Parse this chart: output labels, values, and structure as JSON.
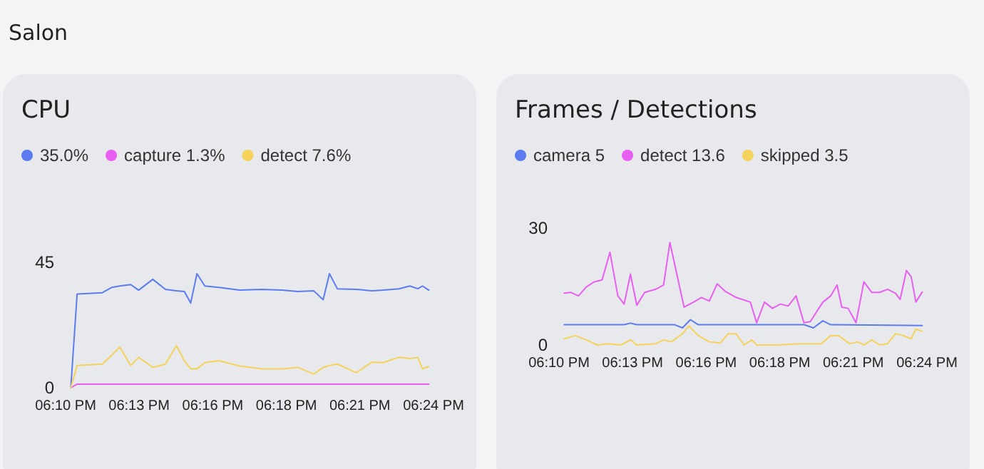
{
  "chart_data": [
    {
      "type": "line",
      "title": "CPU",
      "annotations": [
        "Salon"
      ],
      "legend": "top left",
      "grid": false,
      "marker": "none",
      "line_style": "solid",
      "x": [
        18.17,
        18.174,
        18.19,
        18.196,
        18.201,
        18.208,
        18.213,
        18.222,
        18.23,
        18.237,
        18.242,
        18.246,
        18.25,
        18.255,
        18.264,
        18.277,
        18.291,
        18.304,
        18.314,
        18.324,
        18.33,
        18.334,
        18.339,
        18.351,
        18.361,
        18.368,
        18.378,
        18.385,
        18.39,
        18.393,
        18.397
      ],
      "series": [
        {
          "name": "35.0%",
          "color": "#5b7cf0",
          "values": [
            0,
            33.6,
            34.1,
            36,
            36.5,
            37,
            35,
            38.9,
            35.3,
            34.8,
            34.5,
            30.4,
            40.9,
            36.5,
            36,
            35,
            35.3,
            35,
            34.5,
            34.8,
            31.6,
            40.9,
            35.5,
            35.3,
            34.8,
            35,
            35.5,
            36.5,
            35.5,
            36.5,
            35.0
          ]
        },
        {
          "name": "capture 1.3%",
          "color": "#e85ef0",
          "values": [
            0,
            1.3,
            1.3,
            1.3,
            1.3,
            1.3,
            1.3,
            1.3,
            1.3,
            1.3,
            1.3,
            1.3,
            1.3,
            1.3,
            1.3,
            1.3,
            1.3,
            1.3,
            1.3,
            1.3,
            1.3,
            1.3,
            1.3,
            1.3,
            1.3,
            1.3,
            1.3,
            1.3,
            1.3,
            1.3,
            1.3
          ]
        },
        {
          "name": "detect 7.6%",
          "color": "#f5d25a",
          "values": [
            0,
            8,
            8.5,
            11.7,
            14.6,
            8,
            10.9,
            7.3,
            8.5,
            15.1,
            9.7,
            6.8,
            6.8,
            9,
            9.7,
            7.8,
            6.8,
            6.8,
            7.3,
            4.9,
            7.3,
            8,
            8.5,
            5.4,
            9.2,
            9,
            10.9,
            10.5,
            10.9,
            6.8,
            7.6
          ]
        }
      ],
      "xlim": [
        18.1667,
        18.4
      ],
      "xticks": [
        {
          "value": 18.1667,
          "label": "06:10 PM"
        },
        {
          "value": 18.2133,
          "label": "06:13 PM"
        },
        {
          "value": 18.26,
          "label": "06:16 PM"
        },
        {
          "value": 18.3067,
          "label": "06:18 PM"
        },
        {
          "value": 18.3533,
          "label": "06:21 PM"
        },
        {
          "value": 18.4,
          "label": "06:24 PM"
        }
      ],
      "ylim": [
        0,
        45
      ],
      "yticks": [
        0,
        45
      ]
    },
    {
      "type": "line",
      "title": "Frames / Detections",
      "legend": "top left",
      "grid": false,
      "marker": "none",
      "line_style": "solid",
      "series": [
        {
          "name": "camera 5",
          "color": "#5b7cf0",
          "x": [
            18.17,
            18.208,
            18.212,
            18.216,
            18.24,
            18.245,
            18.25,
            18.255,
            18.322,
            18.328,
            18.334,
            18.339,
            18.397
          ],
          "values": [
            5.2,
            5.2,
            5.6,
            5.2,
            5.2,
            4.4,
            6.5,
            5.2,
            5.2,
            4.4,
            6.2,
            5.2,
            5
          ]
        },
        {
          "name": "detect 13.6",
          "color": "#e85ef0",
          "x": [
            18.17,
            18.174,
            18.179,
            18.184,
            18.189,
            18.194,
            18.199,
            18.204,
            18.208,
            18.212,
            18.216,
            18.221,
            18.228,
            18.233,
            18.237,
            18.246,
            18.252,
            18.257,
            18.262,
            18.267,
            18.272,
            18.279,
            18.288,
            18.292,
            18.297,
            18.302,
            18.307,
            18.312,
            18.317,
            18.322,
            18.326,
            18.334,
            18.339,
            18.343,
            18.346,
            18.35,
            18.355,
            18.36,
            18.365,
            18.37,
            18.375,
            18.38,
            18.383,
            18.387,
            18.39,
            18.393,
            18.397
          ],
          "values": [
            13.3,
            13.5,
            12.6,
            14.9,
            16.2,
            16.7,
            23.8,
            12.6,
            10.5,
            18.2,
            10.2,
            13.5,
            14.3,
            15.4,
            26.3,
            9.7,
            11,
            12.2,
            11.3,
            15.7,
            13.8,
            12.2,
            11,
            5.7,
            11,
            9.4,
            10.5,
            10,
            12.6,
            5.7,
            6,
            11,
            12.6,
            15.4,
            9.7,
            9.4,
            5.7,
            16.2,
            13.5,
            13.5,
            14.3,
            13.3,
            11.7,
            19.1,
            17.5,
            11,
            13.6
          ]
        },
        {
          "name": "skipped 3.5",
          "color": "#f5d25a",
          "x": [
            18.17,
            18.177,
            18.184,
            18.191,
            18.198,
            18.206,
            18.212,
            18.216,
            18.228,
            18.233,
            18.238,
            18.245,
            18.249,
            18.255,
            18.262,
            18.269,
            18.274,
            18.279,
            18.284,
            18.289,
            18.292,
            18.306,
            18.319,
            18.333,
            18.339,
            18.344,
            18.351,
            18.356,
            18.36,
            18.365,
            18.37,
            18.375,
            18.38,
            18.385,
            18.39,
            18.393,
            18.397
          ],
          "values": [
            1.6,
            2.4,
            1.3,
            0,
            0.3,
            0,
            1.3,
            0,
            0.3,
            1.3,
            0.8,
            2.9,
            4.9,
            2.4,
            0.8,
            0.5,
            2.9,
            2.9,
            0,
            1.3,
            0,
            0,
            0.3,
            0.3,
            2.4,
            2.4,
            0.3,
            0.8,
            0,
            1.3,
            0,
            0.3,
            2.9,
            2.4,
            1.6,
            4.1,
            3.5
          ]
        }
      ],
      "xlim": [
        18.1667,
        18.4
      ],
      "xticks": [
        {
          "value": 18.1667,
          "label": "06:10 PM"
        },
        {
          "value": 18.2133,
          "label": "06:13 PM"
        },
        {
          "value": 18.26,
          "label": "06:16 PM"
        },
        {
          "value": 18.3067,
          "label": "06:18 PM"
        },
        {
          "value": 18.3533,
          "label": "06:21 PM"
        },
        {
          "value": 18.4,
          "label": "06:24 PM"
        }
      ],
      "ylim": [
        0,
        30
      ],
      "yticks": [
        0,
        30
      ]
    }
  ]
}
